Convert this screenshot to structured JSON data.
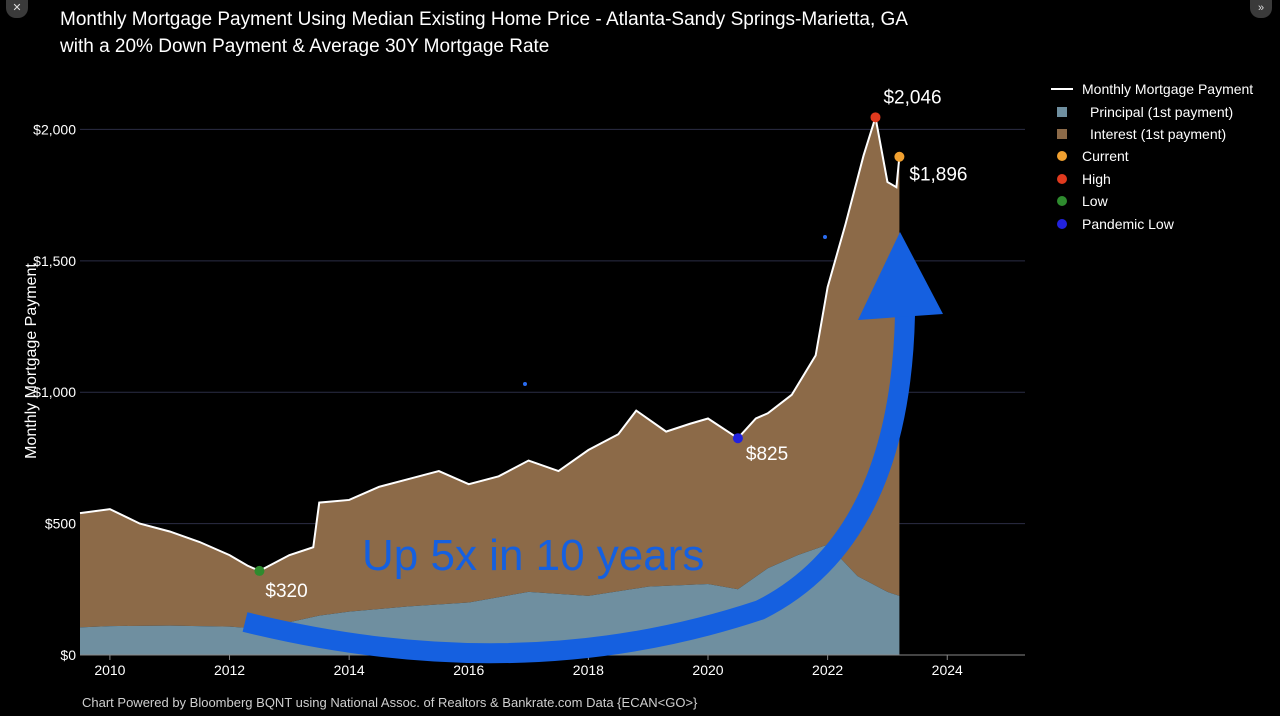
{
  "title_line1": "Monthly Mortgage Payment Using Median Existing Home Price - Atlanta-Sandy Springs-Marietta, GA",
  "title_line2": "with a 20% Down Payment & Average 30Y Mortgage Rate",
  "footer": "Chart Powered by Bloomberg BQNT using National Assoc. of Realtors & Bankrate.com Data   {ECAN<GO>}",
  "legend": [
    {
      "label": "Monthly Mortgage Payment",
      "kind": "line",
      "color": "#ffffff"
    },
    {
      "label": "Principal (1st payment)",
      "kind": "square",
      "color": "#6f8fa0"
    },
    {
      "label": "Interest (1st payment)",
      "kind": "square",
      "color": "#8c6a48"
    },
    {
      "label": "Current",
      "kind": "dot",
      "color": "#f0a030"
    },
    {
      "label": "High",
      "kind": "dot",
      "color": "#e03a1e"
    },
    {
      "label": "Low",
      "kind": "dot",
      "color": "#2e8b2e"
    },
    {
      "label": "Pandemic Low",
      "kind": "dot",
      "color": "#2222dd"
    }
  ],
  "chart_data": {
    "type": "area",
    "title": "Monthly Mortgage Payment Using Median Existing Home Price - Atlanta-Sandy Springs-Marietta, GA with a 20% Down Payment & Average 30Y Mortgage Rate",
    "xlabel": "",
    "ylabel": "Monthly Mortgage Payment",
    "xlim": [
      2009.5,
      2025.3
    ],
    "ylim": [
      0,
      2150
    ],
    "yticks": [
      0,
      500,
      1000,
      1500,
      2000
    ],
    "ytick_labels": [
      "$0",
      "$500",
      "$1,000",
      "$1,500",
      "$2,000"
    ],
    "xticks": [
      2010,
      2012,
      2014,
      2016,
      2018,
      2020,
      2022,
      2024
    ],
    "xtick_labels": [
      "2010",
      "2012",
      "2014",
      "2016",
      "2018",
      "2020",
      "2022",
      "2024"
    ],
    "grid": "horizontal",
    "legend_position": "right",
    "series": [
      {
        "name": "Monthly Mortgage Payment",
        "x": [
          2009.5,
          2010.0,
          2010.5,
          2011.0,
          2011.5,
          2012.0,
          2012.3,
          2012.5,
          2013.0,
          2013.4,
          2013.5,
          2014.0,
          2014.5,
          2015.0,
          2015.5,
          2016.0,
          2016.5,
          2017.0,
          2017.5,
          2018.0,
          2018.5,
          2018.8,
          2019.3,
          2019.7,
          2020.0,
          2020.5,
          2020.8,
          2021.0,
          2021.4,
          2021.8,
          2022.0,
          2022.3,
          2022.6,
          2022.8,
          2023.0,
          2023.15,
          2023.2
        ],
        "values": [
          540,
          555,
          500,
          470,
          430,
          380,
          340,
          320,
          380,
          410,
          580,
          590,
          640,
          670,
          700,
          650,
          680,
          740,
          700,
          780,
          840,
          930,
          850,
          880,
          900,
          825,
          900,
          920,
          990,
          1140,
          1400,
          1640,
          1900,
          2046,
          1800,
          1780,
          1896
        ]
      },
      {
        "name": "Principal (1st payment)",
        "x": [
          2009.5,
          2010.0,
          2011.0,
          2012.0,
          2012.5,
          2013.5,
          2014.0,
          2015.0,
          2016.0,
          2017.0,
          2018.0,
          2019.0,
          2020.0,
          2020.5,
          2021.0,
          2021.5,
          2022.0,
          2022.5,
          2023.0,
          2023.2
        ],
        "values": [
          105,
          110,
          112,
          108,
          100,
          150,
          165,
          185,
          200,
          240,
          225,
          260,
          270,
          250,
          330,
          380,
          420,
          300,
          240,
          225
        ]
      },
      {
        "name": "Interest (1st payment)",
        "x": [
          2009.5,
          2010.0,
          2011.0,
          2012.0,
          2012.5,
          2013.5,
          2014.0,
          2015.0,
          2016.0,
          2017.0,
          2018.0,
          2019.0,
          2020.0,
          2020.5,
          2021.0,
          2021.5,
          2022.0,
          2022.5,
          2023.0,
          2023.2
        ],
        "values": [
          435,
          445,
          380,
          272,
          220,
          430,
          425,
          485,
          450,
          500,
          555,
          590,
          630,
          575,
          590,
          640,
          980,
          1600,
          1560,
          1671
        ]
      }
    ],
    "markers": [
      {
        "label": "Current",
        "x": 2023.2,
        "y": 1896,
        "text": "$1,896",
        "color": "#f0a030"
      },
      {
        "label": "High",
        "x": 2022.8,
        "y": 2046,
        "text": "$2,046",
        "color": "#e03a1e"
      },
      {
        "label": "Low",
        "x": 2012.5,
        "y": 320,
        "text": "$320",
        "color": "#2e8b2e"
      },
      {
        "label": "Pandemic Low",
        "x": 2020.5,
        "y": 825,
        "text": "$825",
        "color": "#2222dd"
      }
    ],
    "annotation": {
      "text": "Up 5x in 10 years",
      "color": "#1560e0"
    }
  }
}
